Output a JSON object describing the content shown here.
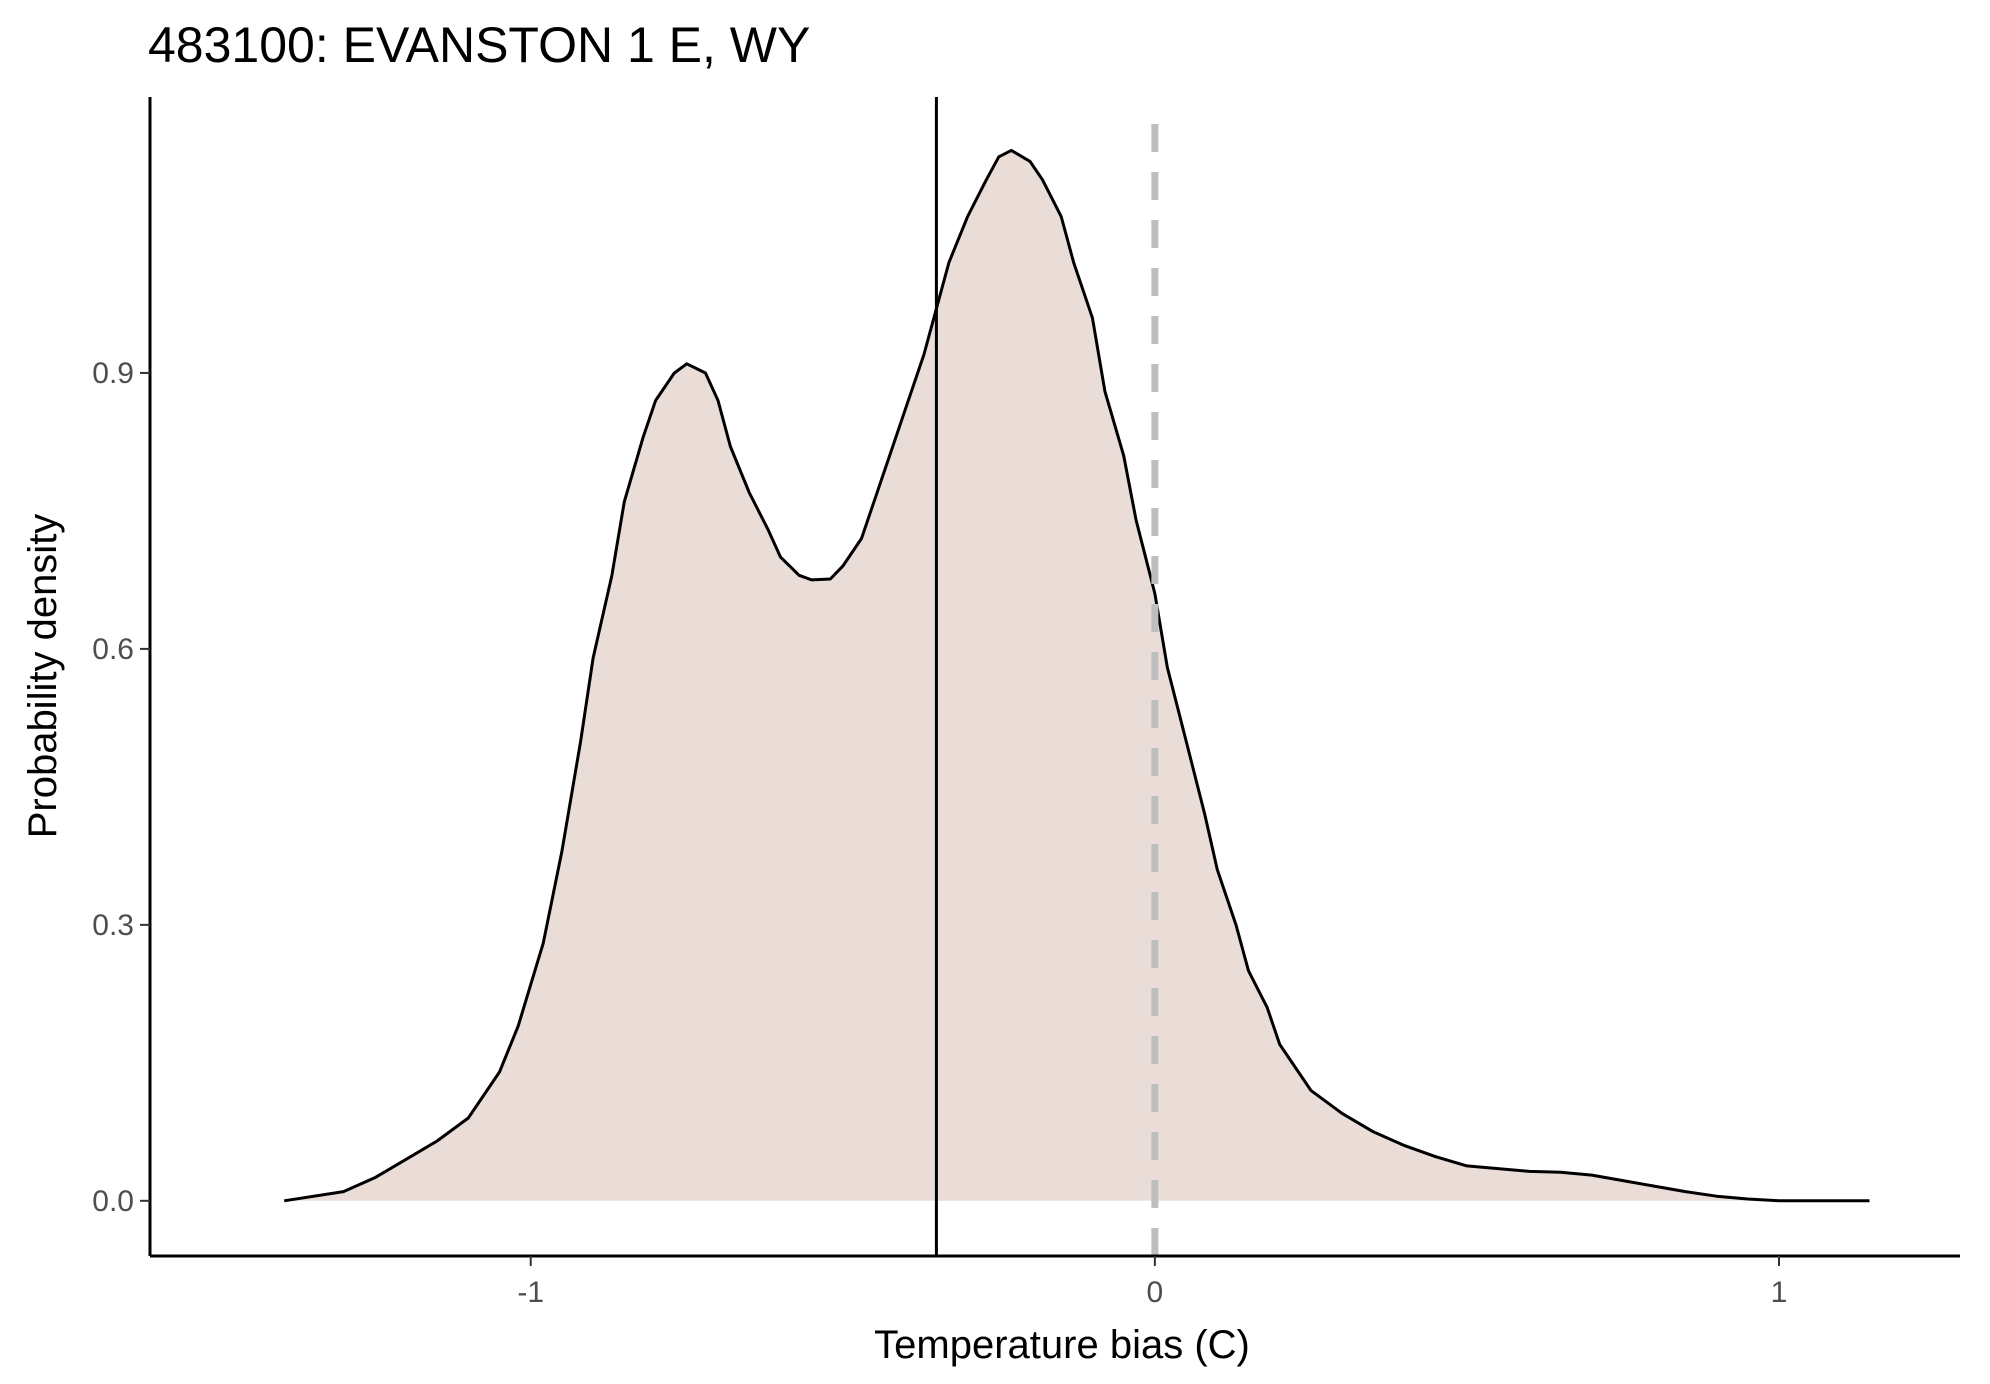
{
  "chart_data": {
    "type": "area",
    "title": "483100: EVANSTON 1 E, WY",
    "xlabel": "Temperature bias (C)",
    "ylabel": "Probability density",
    "xlim": [
      -1.61,
      1.29
    ],
    "ylim": [
      -0.06,
      1.2
    ],
    "x_ticks": [
      -1,
      0,
      1
    ],
    "x_tick_labels": [
      "-1",
      "0",
      "1"
    ],
    "y_ticks": [
      0.0,
      0.3,
      0.6,
      0.9
    ],
    "y_tick_labels": [
      "0.0",
      "0.3",
      "0.6",
      "0.9"
    ],
    "fill_color": "#eaddd8",
    "line_color": "#000000",
    "grid": false,
    "legend": "none",
    "series": [
      {
        "x": [
          -1.395,
          -1.3,
          -1.25,
          -1.2,
          -1.15,
          -1.1,
          -1.05,
          -1.02,
          -0.98,
          -0.95,
          -0.92,
          -0.9,
          -0.87,
          -0.85,
          -0.82,
          -0.8,
          -0.77,
          -0.75,
          -0.72,
          -0.7,
          -0.68,
          -0.65,
          -0.62,
          -0.6,
          -0.57,
          -0.55,
          -0.52,
          -0.5,
          -0.47,
          -0.45,
          -0.43,
          -0.4,
          -0.37,
          -0.35,
          -0.33,
          -0.3,
          -0.27,
          -0.25,
          -0.23,
          -0.2,
          -0.18,
          -0.15,
          -0.13,
          -0.1,
          -0.08,
          -0.05,
          -0.03,
          0.0,
          0.02,
          0.05,
          0.08,
          0.1,
          0.13,
          0.15,
          0.18,
          0.2,
          0.25,
          0.3,
          0.35,
          0.4,
          0.45,
          0.5,
          0.55,
          0.6,
          0.65,
          0.7,
          0.75,
          0.8,
          0.85,
          0.9,
          0.95,
          1.0,
          1.05,
          1.1,
          1.145
        ],
        "y": [
          0.0,
          0.01,
          0.025,
          0.045,
          0.065,
          0.09,
          0.14,
          0.19,
          0.28,
          0.38,
          0.5,
          0.59,
          0.68,
          0.76,
          0.83,
          0.87,
          0.9,
          0.91,
          0.9,
          0.87,
          0.82,
          0.77,
          0.73,
          0.7,
          0.68,
          0.675,
          0.676,
          0.69,
          0.72,
          0.76,
          0.8,
          0.86,
          0.92,
          0.97,
          1.02,
          1.07,
          1.11,
          1.135,
          1.142,
          1.13,
          1.11,
          1.07,
          1.02,
          0.96,
          0.88,
          0.81,
          0.74,
          0.66,
          0.58,
          0.5,
          0.42,
          0.36,
          0.3,
          0.25,
          0.21,
          0.17,
          0.12,
          0.095,
          0.075,
          0.06,
          0.048,
          0.038,
          0.035,
          0.032,
          0.031,
          0.028,
          0.022,
          0.016,
          0.01,
          0.005,
          0.002,
          0.0,
          0.0,
          0.0,
          0.0
        ]
      }
    ],
    "reference_lines": [
      {
        "orientation": "vertical",
        "x": -0.35,
        "style": "solid",
        "color": "#000000"
      },
      {
        "orientation": "vertical",
        "x": 0.0,
        "style": "dashed",
        "color": "#bebebe"
      }
    ]
  }
}
